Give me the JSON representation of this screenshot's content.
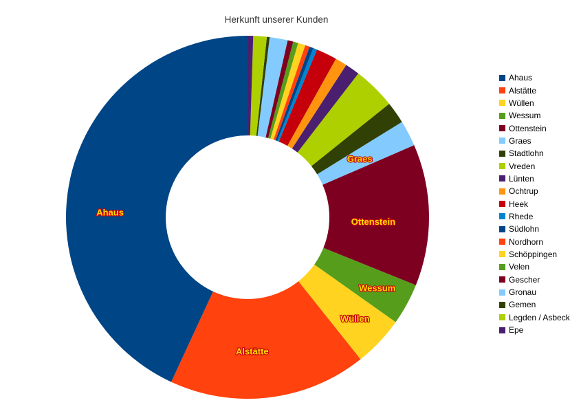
{
  "title": "Herkunft unserer Kunden",
  "chart_data": {
    "type": "pie",
    "variant": "donut",
    "title": "Herkunft unserer Kunden",
    "direction": "counterclockwise",
    "start_angle_deg": 0,
    "inner_radius_ratio": 0.45,
    "legend_position": "right",
    "categories": [
      "Ahaus",
      "Alstätte",
      "Wüllen",
      "Wessum",
      "Ottenstein",
      "Graes",
      "Stadtlohn",
      "Vreden",
      "Lünten",
      "Ochtrup",
      "Heek",
      "Rhede",
      "Südlohn",
      "Nordhorn",
      "Schöppingen",
      "Velen",
      "Gescher",
      "Gronau",
      "Gemen",
      "Legden / Asbeck",
      "Epe"
    ],
    "values": [
      43.1,
      17.6,
      4.5,
      3.7,
      12.6,
      2.3,
      1.95,
      3.8,
      1.3,
      1.05,
      1.85,
      0.35,
      0.35,
      0.4,
      0.65,
      0.45,
      0.5,
      1.6,
      0.25,
      1.2,
      0.5
    ],
    "unit": "percent (estimated from slice angles)",
    "colors": [
      "#004586",
      "#ff420e",
      "#ffd320",
      "#579d1c",
      "#7e0021",
      "#83caff",
      "#314004",
      "#aecf00",
      "#4b1f6f",
      "#ff950e",
      "#c5000b",
      "#0084d1",
      "#004586",
      "#ff420e",
      "#ffd320",
      "#579d1c",
      "#7e0021",
      "#83caff",
      "#314004",
      "#aecf00",
      "#4b1f6f"
    ],
    "slice_labels_shown": [
      "Ahaus",
      "Alstätte",
      "Wüllen",
      "Wessum",
      "Ottenstein",
      "Graes"
    ],
    "slice_label_fill": "#ffdc00",
    "slice_label_outline": "#c5000b"
  }
}
